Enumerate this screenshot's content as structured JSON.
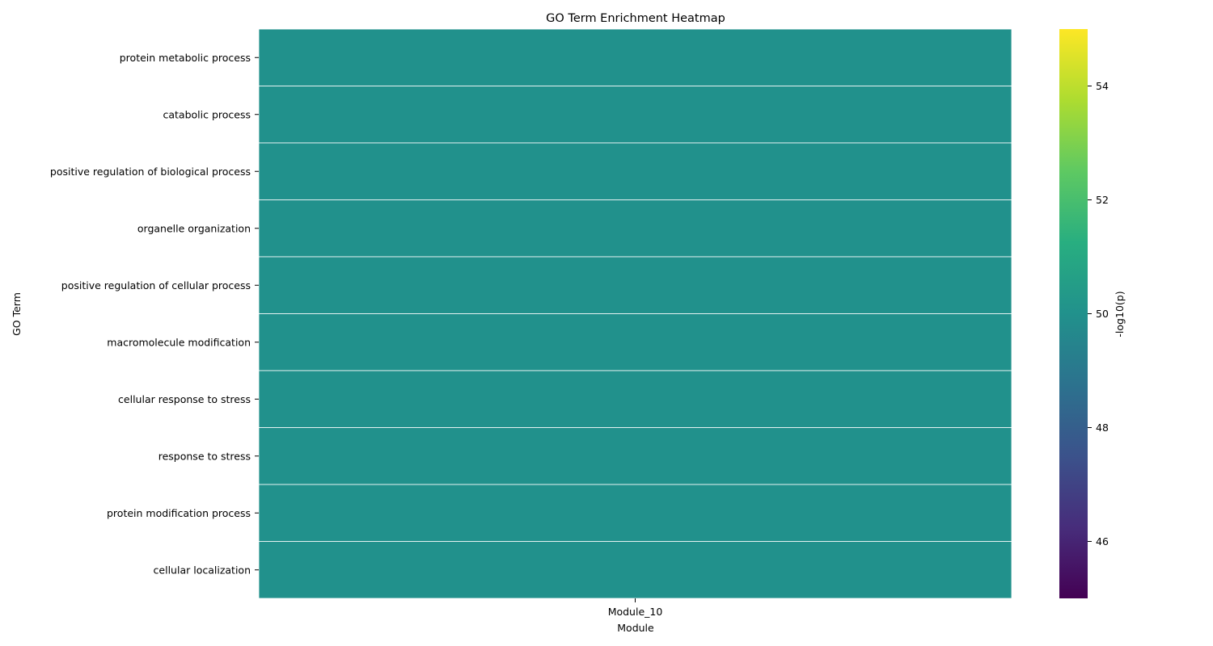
{
  "chart_data": {
    "type": "heatmap",
    "title": "GO Term Enrichment Heatmap",
    "xlabel": "Module",
    "ylabel": "GO Term",
    "columns": [
      "Module_10"
    ],
    "rows": [
      "protein metabolic process",
      "catabolic process",
      "positive regulation of biological process",
      "organelle organization",
      "positive regulation of cellular process",
      "macromolecule modification",
      "cellular response to stress",
      "response to stress",
      "protein modification process",
      "cellular localization"
    ],
    "values": [
      [
        50
      ],
      [
        50
      ],
      [
        50
      ],
      [
        50
      ],
      [
        50
      ],
      [
        50
      ],
      [
        50
      ],
      [
        50
      ],
      [
        50
      ],
      [
        50
      ]
    ],
    "colorbar": {
      "label": "-log10(p)",
      "colormap": "viridis",
      "range": [
        45,
        55
      ],
      "ticks": [
        46,
        48,
        50,
        52,
        54
      ]
    },
    "grid": false,
    "cell_border_color": "#ffffff"
  }
}
